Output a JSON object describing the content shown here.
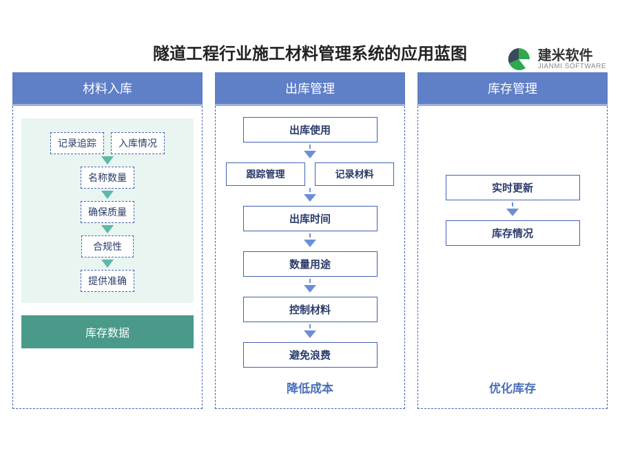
{
  "logo": {
    "cn": "建米软件",
    "en": "JIANMI SOFTWARE",
    "green": "#2fa84f",
    "dark": "#3a4a5a"
  },
  "title": "隧道工程行业施工材料管理系统的应用蓝图",
  "colors": {
    "header_blue": "#5f7fc7",
    "border_blue": "#3f5fb0",
    "panel_mint": "#e9f5f0",
    "footer1_bg": "#4a9a8a",
    "footer2_color": "#4a6fb8",
    "footer3_color": "#4a6fb8",
    "arrow_teal": "#5fb8a8",
    "arrow_blue": "#6a8fd8"
  },
  "columns": [
    {
      "header": "材料入库",
      "type": "col1",
      "top_pair": [
        "记录追踪",
        "入库情况"
      ],
      "chain": [
        "名称数量",
        "确保质量",
        "合规性",
        "提供准确"
      ],
      "footer": "库存数据"
    },
    {
      "header": "出库管理",
      "type": "col2",
      "first": "出库使用",
      "pair": [
        "跟踪管理",
        "记录材料"
      ],
      "chain": [
        "出库时间",
        "数量用途",
        "控制材料",
        "避免浪费"
      ],
      "footer": "降低成本"
    },
    {
      "header": "库存管理",
      "type": "col3",
      "chain": [
        "实时更新",
        "库存情况"
      ],
      "footer": "优化库存"
    }
  ]
}
